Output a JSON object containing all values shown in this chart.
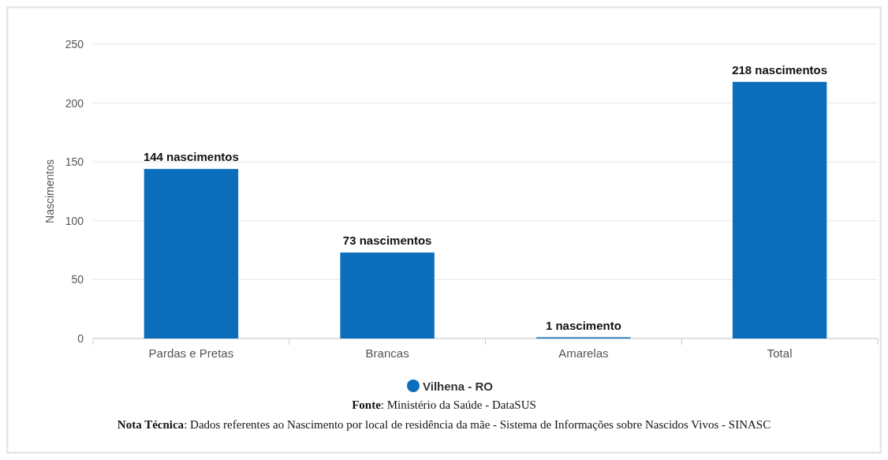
{
  "chart_data": {
    "type": "bar",
    "ylabel": "Nascimentos",
    "categories": [
      "Pardas e Pretas",
      "Brancas",
      "Amarelas",
      "Total"
    ],
    "series": [
      {
        "name": "Vilhena - RO",
        "color": "#0a6ebd",
        "values": [
          144,
          73,
          1,
          218
        ],
        "value_labels": [
          "144 nascimentos",
          "73 nascimentos",
          "1 nascimento",
          "218 nascimentos"
        ]
      }
    ],
    "ylim": [
      0,
      250
    ],
    "yticks": [
      0,
      50,
      100,
      150,
      200,
      250
    ],
    "grid": "y",
    "legend": "bottom",
    "annotations": [
      "Fonte: Ministério da Saúde - DataSUS",
      "Nota Técnica: Dados referentes ao Nascimento por local de residência da mãe - Sistema de Informações sobre Nascidos Vivos - SINASC"
    ]
  }
}
